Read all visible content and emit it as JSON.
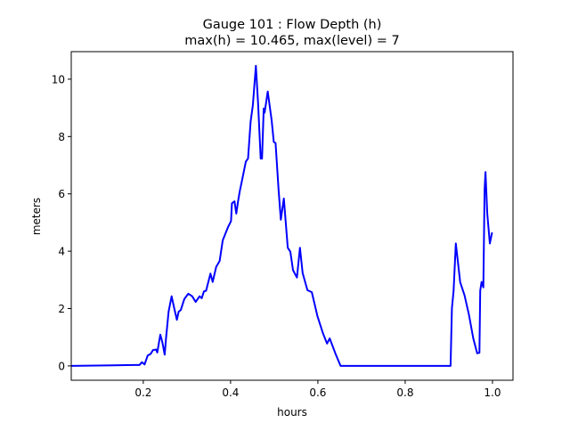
{
  "chart_data": {
    "type": "line",
    "title_line1": "Gauge 101 : Flow Depth (h)",
    "title_line2": "max(h) =  10.465,    max(level) = 7",
    "xlabel": "hours",
    "ylabel": "meters",
    "xlim": [
      0.035,
      1.047
    ],
    "ylim": [
      -0.5,
      10.96
    ],
    "xticks": [
      0.2,
      0.4,
      0.6,
      0.8,
      1.0
    ],
    "xtick_labels": [
      "0.2",
      "0.4",
      "0.6",
      "0.8",
      "1.0"
    ],
    "yticks": [
      0,
      2,
      4,
      6,
      8,
      10
    ],
    "ytick_labels": [
      "0",
      "2",
      "4",
      "6",
      "8",
      "10"
    ],
    "grid": false,
    "line_color": "#0000ff",
    "series": [
      {
        "x": [
          0.035,
          0.178,
          0.191,
          0.197,
          0.203,
          0.21,
          0.217,
          0.222,
          0.229,
          0.232,
          0.239,
          0.244,
          0.249,
          0.252,
          0.258,
          0.265,
          0.271,
          0.277,
          0.281,
          0.286,
          0.294,
          0.303,
          0.312,
          0.32,
          0.329,
          0.334,
          0.339,
          0.344,
          0.354,
          0.359,
          0.367,
          0.375,
          0.382,
          0.394,
          0.401,
          0.403,
          0.409,
          0.413,
          0.417,
          0.421,
          0.428,
          0.435,
          0.44,
          0.446,
          0.451,
          0.458,
          0.463,
          0.469,
          0.472,
          0.476,
          0.478,
          0.485,
          0.494,
          0.499,
          0.503,
          0.51,
          0.515,
          0.522,
          0.531,
          0.537,
          0.543,
          0.552,
          0.559,
          0.565,
          0.576,
          0.586,
          0.599,
          0.612,
          0.621,
          0.627,
          0.64,
          0.652,
          0.708,
          0.904,
          0.907,
          0.911,
          0.916,
          0.926,
          0.936,
          0.946,
          0.956,
          0.965,
          0.97,
          0.972,
          0.975,
          0.979,
          0.982,
          0.984,
          0.988,
          0.994,
          0.999
        ],
        "y": [
          0,
          0.03,
          0.03,
          0.13,
          0.05,
          0.36,
          0.42,
          0.55,
          0.57,
          0.47,
          1.09,
          0.81,
          0.39,
          0.96,
          1.89,
          2.43,
          2.0,
          1.61,
          1.89,
          1.95,
          2.33,
          2.52,
          2.43,
          2.23,
          2.43,
          2.36,
          2.6,
          2.62,
          3.22,
          2.93,
          3.45,
          3.66,
          4.38,
          4.84,
          5.05,
          5.67,
          5.74,
          5.31,
          5.72,
          6.09,
          6.6,
          7.12,
          7.23,
          8.52,
          9.09,
          10.465,
          9.14,
          7.23,
          7.23,
          8.98,
          8.83,
          9.57,
          8.57,
          7.81,
          7.77,
          6.14,
          5.1,
          5.84,
          4.12,
          3.98,
          3.34,
          3.08,
          4.12,
          3.24,
          2.64,
          2.57,
          1.74,
          1.12,
          0.78,
          0.96,
          0.44,
          0,
          0,
          0,
          2.0,
          2.62,
          4.27,
          2.92,
          2.46,
          1.79,
          0.96,
          0.44,
          0.46,
          2.62,
          2.93,
          2.74,
          6.14,
          6.76,
          5.31,
          4.27,
          4.66
        ]
      }
    ]
  }
}
